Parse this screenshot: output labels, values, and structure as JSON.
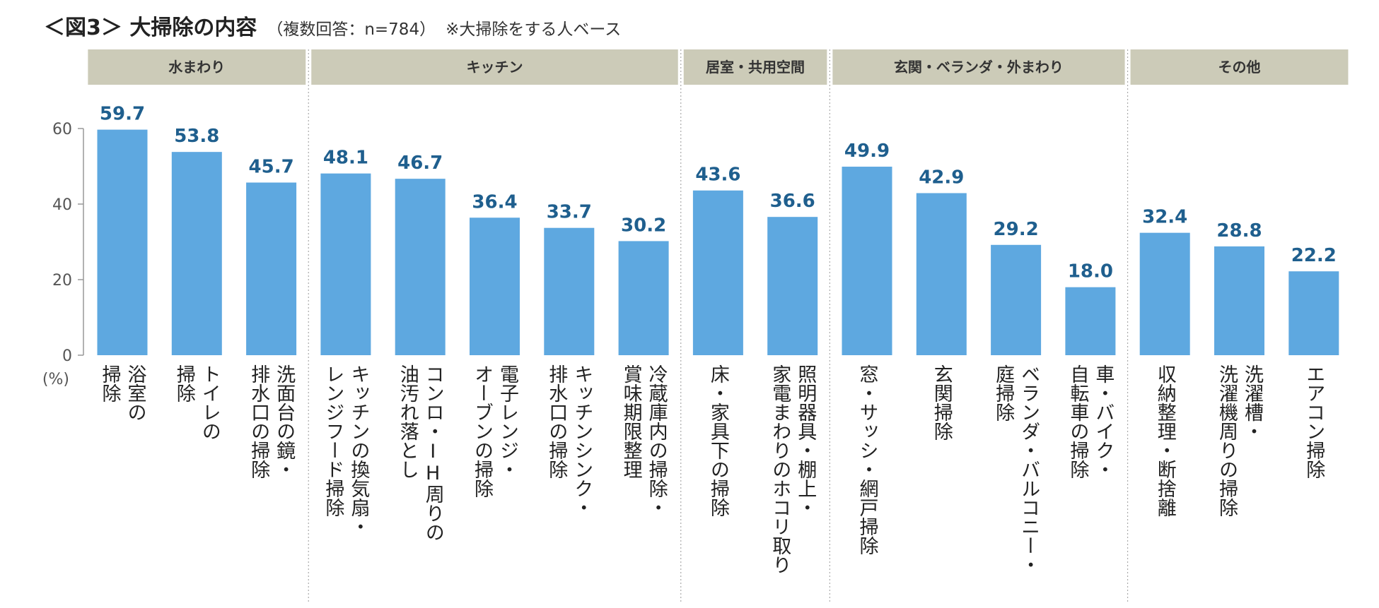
{
  "title": {
    "main": "＜図3＞ 大掃除の内容",
    "sub": "（複数回答：n=784）",
    "note": "※大掃除をする人ベース"
  },
  "chart_data": {
    "type": "bar",
    "ylim": [
      0,
      60
    ],
    "yticks": [
      0,
      20,
      40,
      60
    ],
    "yunit": "(%)",
    "bar_color": "#5ea8e0",
    "header_color": "#cccbb8",
    "value_color": "#1f5f8e",
    "groups": [
      {
        "name": "水まわり",
        "start": 0,
        "count": 3
      },
      {
        "name": "キッチン",
        "start": 3,
        "count": 5
      },
      {
        "name": "居室・共用空間",
        "start": 8,
        "count": 2
      },
      {
        "name": "玄関・ベランダ・外まわり",
        "start": 10,
        "count": 4
      },
      {
        "name": "その他",
        "start": 14,
        "count": 3
      }
    ],
    "categories": [
      [
        "浴室の",
        "掃除"
      ],
      [
        "トイレの",
        "掃除"
      ],
      [
        "洗面台の鏡・",
        "排水口の掃除"
      ],
      [
        "キッチンの換気扇・",
        "レンジフード掃除"
      ],
      [
        "コンロ・IH周りの",
        "油汚れ落とし"
      ],
      [
        "電子レンジ・",
        "オーブンの掃除"
      ],
      [
        "キッチンシンク・",
        "排水口の掃除"
      ],
      [
        "冷蔵庫内の掃除・",
        "賞味期限整理"
      ],
      [
        "床・家具下の掃除"
      ],
      [
        "照明器具・棚上・",
        "家電まわりのホコリ取り"
      ],
      [
        "窓・サッシ・網戸掃除"
      ],
      [
        "玄関掃除"
      ],
      [
        "ベランダ・バルコニー・",
        "庭掃除"
      ],
      [
        "車・バイク・",
        "自転車の掃除"
      ],
      [
        "収納整理・断捨離"
      ],
      [
        "洗濯槽・",
        "洗濯機周りの掃除"
      ],
      [
        "エアコン掃除"
      ]
    ],
    "values": [
      59.7,
      53.8,
      45.7,
      48.1,
      46.7,
      36.4,
      33.7,
      30.2,
      43.6,
      36.6,
      49.9,
      42.9,
      29.2,
      18.0,
      32.4,
      28.8,
      22.2
    ],
    "value_labels": [
      "59.7",
      "53.8",
      "45.7",
      "48.1",
      "46.7",
      "36.4",
      "33.7",
      "30.2",
      "43.6",
      "36.6",
      "49.9",
      "42.9",
      "29.2",
      "18.0",
      "32.4",
      "28.8",
      "22.2"
    ]
  }
}
